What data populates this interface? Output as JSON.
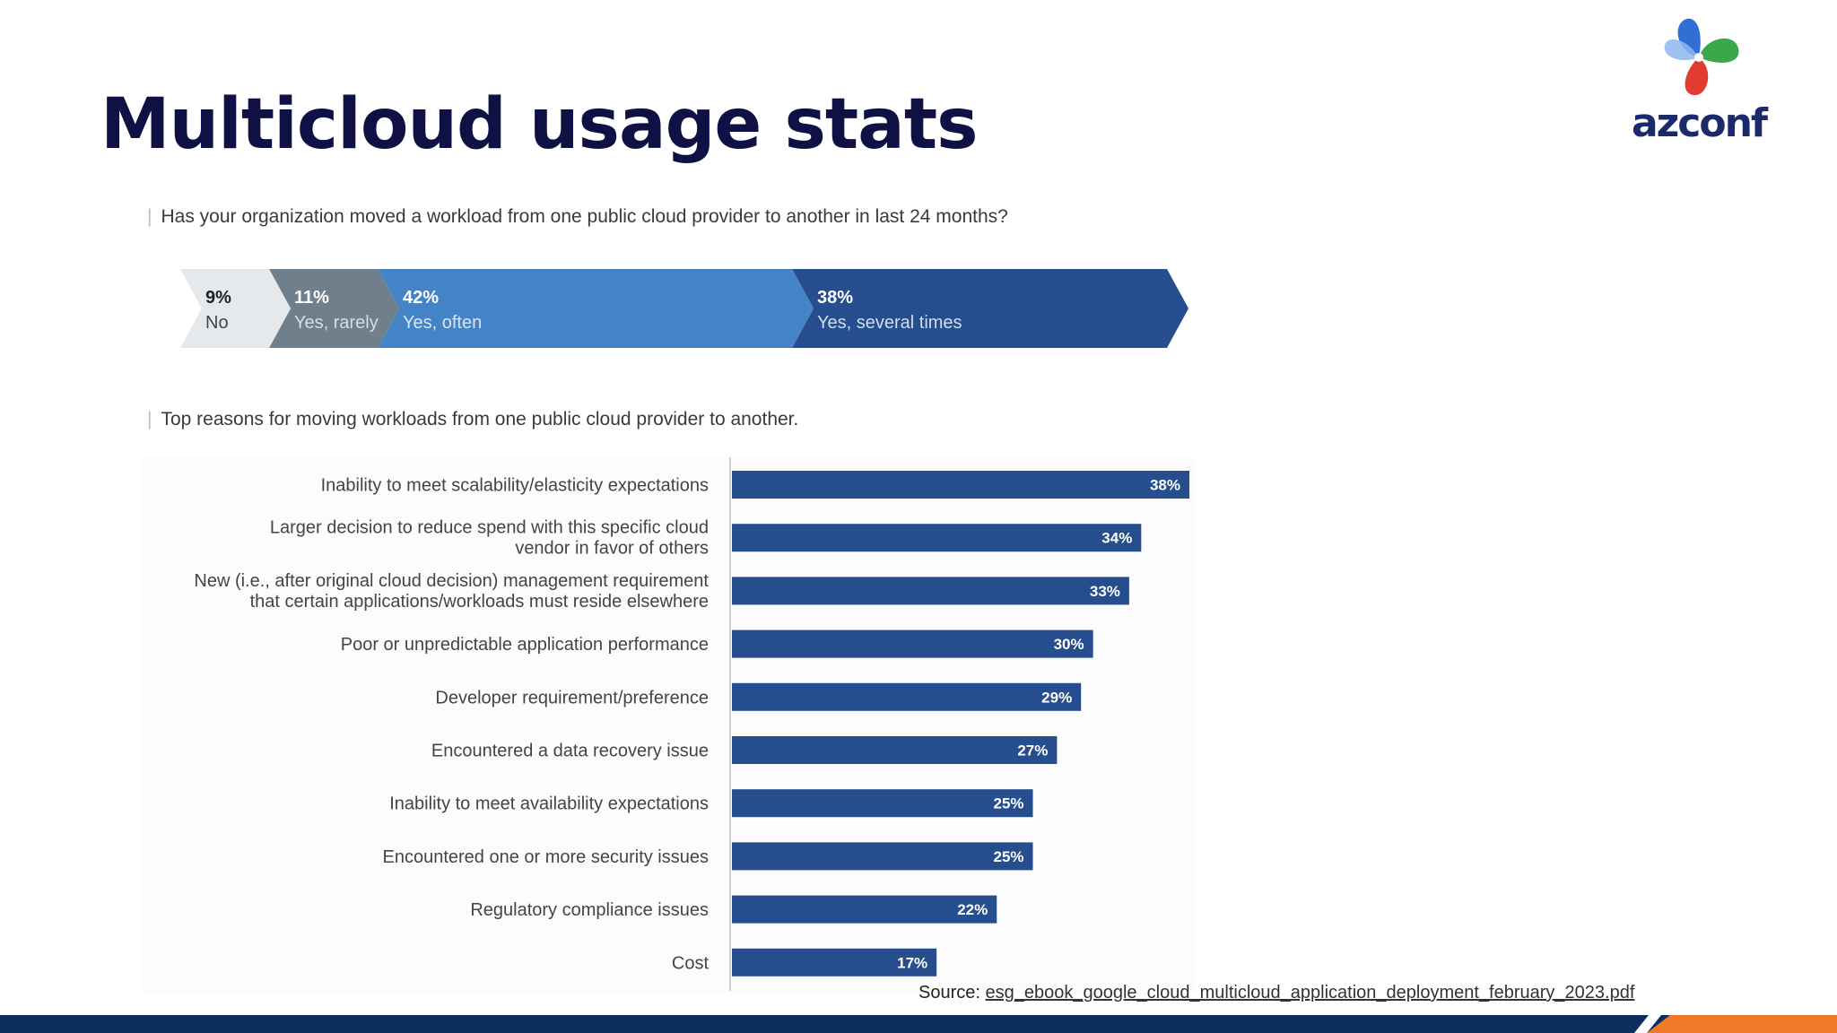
{
  "slide": {
    "title": "Multicloud usage stats",
    "logo_text": "azconf"
  },
  "source": {
    "label": "Source:",
    "link_text": "esg_ebook_google_cloud_multicloud_application_deployment_february_2023.pdf"
  },
  "colors": {
    "title": "#0f1145",
    "bar": "#264e8e",
    "arrow_no": "#e6e9ec",
    "arrow_rarely": "#6f7f8c",
    "arrow_often": "#4383c6",
    "arrow_several": "#264e8e",
    "footer": "#0d2d5e",
    "footer_accent": "#f07a28"
  },
  "chart_data": [
    {
      "type": "bar",
      "orientation": "horizontal-stacked",
      "title": "Has your organization moved a workload from one public cloud provider to another in last 24 months?",
      "categories": [
        "No",
        "Yes, rarely",
        "Yes, often",
        "Yes, several times"
      ],
      "values": [
        9,
        11,
        42,
        38
      ],
      "labels": [
        "9%",
        "11%",
        "42%",
        "38%"
      ]
    },
    {
      "type": "bar",
      "orientation": "horizontal",
      "title": "Top reasons for moving workloads from one public cloud provider to another.",
      "categories": [
        [
          "Inability to meet scalability/elasticity expectations"
        ],
        [
          "Larger decision to reduce spend with this specific cloud",
          "vendor in favor of others"
        ],
        [
          "New (i.e., after original cloud decision) management requirement",
          "that certain applications/workloads must reside elsewhere"
        ],
        [
          "Poor or unpredictable application performance"
        ],
        [
          "Developer requirement/preference"
        ],
        [
          "Encountered a data recovery issue"
        ],
        [
          "Inability to meet availability expectations"
        ],
        [
          "Encountered one or more security issues"
        ],
        [
          "Regulatory compliance issues"
        ],
        [
          "Cost"
        ]
      ],
      "values": [
        38,
        34,
        33,
        30,
        29,
        27,
        25,
        25,
        22,
        17
      ],
      "labels": [
        "38%",
        "34%",
        "33%",
        "30%",
        "29%",
        "27%",
        "25%",
        "25%",
        "22%",
        "17%"
      ],
      "xlim": [
        0,
        38
      ]
    }
  ]
}
